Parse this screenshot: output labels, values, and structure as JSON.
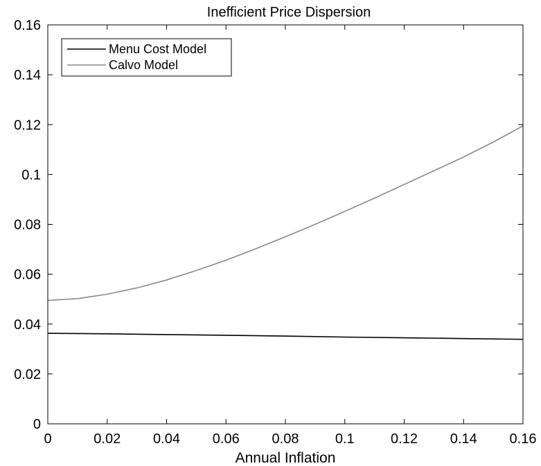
{
  "chart_data": {
    "type": "line",
    "title": "Inefficient Price Dispersion",
    "xlabel": "Annual Inflation",
    "ylabel": "",
    "xlim": [
      0,
      0.16
    ],
    "ylim": [
      0,
      0.16
    ],
    "xticks": [
      "0",
      "0.02",
      "0.04",
      "0.06",
      "0.08",
      "0.1",
      "0.12",
      "0.14",
      "0.16"
    ],
    "yticks": [
      "0",
      "0.02",
      "0.04",
      "0.06",
      "0.08",
      "0.1",
      "0.12",
      "0.14",
      "0.16"
    ],
    "grid": false,
    "legend_position": "top-left",
    "series": [
      {
        "name": "Menu Cost Model",
        "color": "#000000",
        "x": [
          0,
          0.02,
          0.04,
          0.06,
          0.08,
          0.1,
          0.12,
          0.14,
          0.16
        ],
        "y": [
          0.0363,
          0.0361,
          0.0358,
          0.0355,
          0.0352,
          0.0348,
          0.0345,
          0.0342,
          0.0339
        ]
      },
      {
        "name": "Calvo Model",
        "color": "#888888",
        "x": [
          0,
          0.01,
          0.02,
          0.03,
          0.04,
          0.05,
          0.06,
          0.07,
          0.08,
          0.09,
          0.1,
          0.11,
          0.12,
          0.13,
          0.14,
          0.15,
          0.16
        ],
        "y": [
          0.0495,
          0.0502,
          0.052,
          0.0545,
          0.0577,
          0.0615,
          0.0656,
          0.0702,
          0.075,
          0.08,
          0.0852,
          0.0905,
          0.096,
          0.1015,
          0.107,
          0.113,
          0.1195
        ]
      }
    ]
  }
}
